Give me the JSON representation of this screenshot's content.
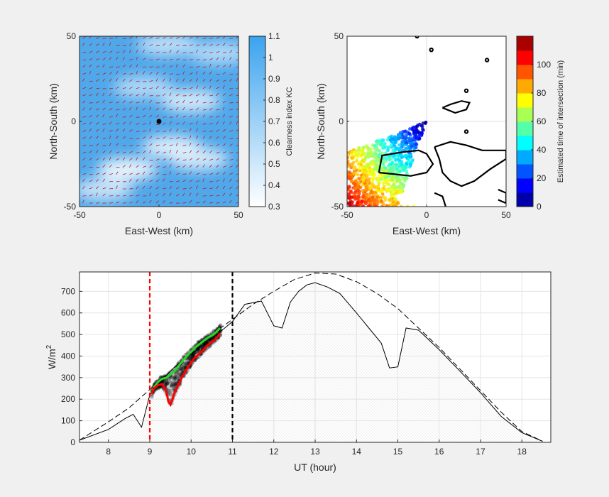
{
  "chart_data": [
    {
      "type": "heatmap",
      "xlabel": "East-West (km)",
      "ylabel": "North-South (km)",
      "xlim": [
        -50,
        50
      ],
      "ylim": [
        -50,
        50
      ],
      "xticks": [
        "-50",
        "0",
        "50"
      ],
      "yticks": [
        "-50",
        "0",
        "50"
      ],
      "colorbar": {
        "label": "Clearness index KC",
        "ticks": [
          "0.3",
          "0.4",
          "0.5",
          "0.6",
          "0.7",
          "0.8",
          "0.9",
          "1",
          "1.1"
        ],
        "range": [
          0.3,
          1.1
        ],
        "colors": [
          "#ffffff",
          "#3ba3ee"
        ]
      },
      "marker": {
        "x": 0,
        "y": 0
      },
      "cloud_regions": [
        {
          "x": -20,
          "y": -28,
          "kc": 0.35
        },
        {
          "x": 8,
          "y": -15,
          "kc": 0.4
        },
        {
          "x": 25,
          "y": -22,
          "kc": 0.45
        },
        {
          "x": 20,
          "y": 12,
          "kc": 0.45
        },
        {
          "x": -10,
          "y": 20,
          "kc": 0.6
        },
        {
          "x": 5,
          "y": 45,
          "kc": 0.55
        },
        {
          "x": 38,
          "y": 40,
          "kc": 0.6
        },
        {
          "x": -35,
          "y": -40,
          "kc": 0.5
        }
      ]
    },
    {
      "type": "scatter",
      "xlabel": "East-West (km)",
      "ylabel": "North-South (km)",
      "xlim": [
        -50,
        50
      ],
      "ylim": [
        -50,
        50
      ],
      "xticks": [
        "-50",
        "0",
        "50"
      ],
      "yticks": [
        "-50",
        "0",
        "50"
      ],
      "grid": true,
      "colorbar": {
        "label": "Estimated time of intersection (min)",
        "ticks": [
          "0",
          "20",
          "40",
          "60",
          "80",
          "100"
        ],
        "range": [
          0,
          120
        ],
        "colormap": "jet"
      },
      "points_description": "wedge of points from origin toward lower-left, time increasing with distance",
      "contours": [
        {
          "points": [
            [
              -30,
              -30
            ],
            [
              -28,
              -20
            ],
            [
              -15,
              -18
            ],
            [
              -5,
              -17
            ],
            [
              0,
              -19
            ],
            [
              4,
              -25
            ],
            [
              0,
              -30
            ],
            [
              -10,
              -32
            ],
            [
              -20,
              -31
            ],
            [
              -30,
              -30
            ]
          ]
        },
        {
          "points": [
            [
              5,
              -15
            ],
            [
              15,
              -12
            ],
            [
              25,
              -14
            ],
            [
              35,
              -17
            ],
            [
              50,
              -17
            ],
            [
              50,
              -22
            ],
            [
              40,
              -28
            ],
            [
              30,
              -35
            ],
            [
              22,
              -38
            ],
            [
              15,
              -35
            ],
            [
              10,
              -30
            ],
            [
              8,
              -22
            ],
            [
              5,
              -15
            ]
          ]
        },
        {
          "points": [
            [
              5,
              -42
            ],
            [
              10,
              -44
            ],
            [
              12,
              -50
            ]
          ]
        },
        {
          "points": [
            [
              10,
              8
            ],
            [
              15,
              10
            ],
            [
              22,
              12
            ],
            [
              27,
              11
            ],
            [
              25,
              7
            ],
            [
              18,
              5
            ],
            [
              10,
              8
            ]
          ]
        },
        {
          "points": [
            [
              45,
              -40
            ],
            [
              50,
              -42
            ],
            [
              50,
              -48
            ],
            [
              45,
              -46
            ]
          ]
        }
      ],
      "small_contours": [
        {
          "x": 25,
          "y": 18
        },
        {
          "x": -6,
          "y": 50
        },
        {
          "x": 3,
          "y": 42
        },
        {
          "x": 38,
          "y": 36
        },
        {
          "x": 25,
          "y": -6
        }
      ]
    },
    {
      "type": "line",
      "xlabel": "UT (hour)",
      "ylabel": "W/m²",
      "ylabel_base": "W/m",
      "ylabel_sup": "2",
      "xlim": [
        7.3,
        18.7
      ],
      "ylim": [
        0,
        790
      ],
      "xticks": [
        "8",
        "9",
        "10",
        "11",
        "12",
        "13",
        "14",
        "15",
        "16",
        "17",
        "18"
      ],
      "yticks": [
        "0",
        "100",
        "200",
        "300",
        "400",
        "500",
        "600",
        "700"
      ],
      "grid": true,
      "vlines": [
        {
          "x": 9.0,
          "color": "#ff0000",
          "style": "dashed"
        },
        {
          "x": 11.0,
          "color": "#000000",
          "style": "dashed"
        }
      ],
      "series": [
        {
          "style": "dashed",
          "color": "#000000",
          "x": [
            7.3,
            8.0,
            8.5,
            9.0,
            9.5,
            10.0,
            10.5,
            11.0,
            11.5,
            12.0,
            12.5,
            13.0,
            13.5,
            14.0,
            14.5,
            15.0,
            15.5,
            16.0,
            16.5,
            17.0,
            17.5,
            18.0,
            18.5
          ],
          "y": [
            10,
            95,
            160,
            245,
            330,
            420,
            500,
            570,
            640,
            700,
            755,
            785,
            780,
            745,
            690,
            620,
            530,
            440,
            340,
            240,
            140,
            50,
            5
          ]
        },
        {
          "style": "solid",
          "color": "#000000",
          "x": [
            7.3,
            8.0,
            8.4,
            8.6,
            8.8,
            9.0,
            9.3,
            9.6,
            10.0,
            10.5,
            11.0,
            11.3,
            11.7,
            12.0,
            12.2,
            12.4,
            12.6,
            12.8,
            13.0,
            13.3,
            13.6,
            14.0,
            14.3,
            14.6,
            14.8,
            15.0,
            15.2,
            15.5,
            16.0,
            16.5,
            17.0,
            17.5,
            18.0,
            18.5
          ],
          "y": [
            10,
            60,
            110,
            130,
            70,
            220,
            290,
            350,
            410,
            480,
            560,
            640,
            655,
            540,
            530,
            650,
            700,
            730,
            740,
            720,
            690,
            600,
            530,
            460,
            345,
            350,
            530,
            520,
            430,
            330,
            230,
            120,
            45,
            5
          ]
        },
        {
          "style": "solid",
          "color": "#22dd22",
          "x": [
            9.05,
            9.1,
            9.2,
            9.3,
            9.4,
            9.5,
            9.6,
            9.7,
            9.8,
            9.9,
            10.0,
            10.1,
            10.2,
            10.3,
            10.4,
            10.5,
            10.6,
            10.7
          ],
          "y": [
            225,
            255,
            280,
            295,
            300,
            315,
            330,
            355,
            380,
            400,
            420,
            440,
            455,
            470,
            485,
            495,
            510,
            530
          ]
        },
        {
          "style": "solid",
          "color": "#ff0000",
          "x": [
            9.05,
            9.1,
            9.2,
            9.3,
            9.4,
            9.45,
            9.5,
            9.55,
            9.6,
            9.7,
            9.8,
            9.9,
            10.0,
            10.1,
            10.2,
            10.3,
            10.4,
            10.5,
            10.6,
            10.7
          ],
          "y": [
            225,
            250,
            265,
            270,
            235,
            190,
            175,
            200,
            230,
            270,
            310,
            340,
            370,
            395,
            410,
            430,
            450,
            465,
            480,
            505
          ]
        }
      ],
      "scatter_band": {
        "x_range": [
          9.05,
          10.72
        ],
        "spread": 45,
        "color": "#000000"
      }
    }
  ]
}
